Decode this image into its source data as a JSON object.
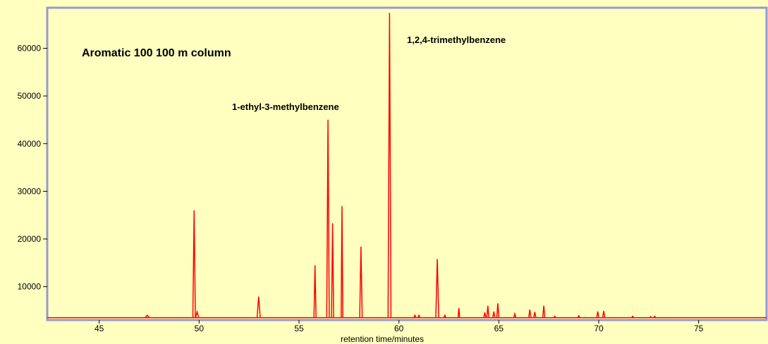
{
  "chart_data": {
    "type": "line",
    "title": "Aromatic 100  100 m column",
    "xlabel": "retention time/minutes",
    "ylabel": "",
    "xlim": [
      42.4,
      78.4
    ],
    "ylim": [
      3000,
      68500
    ],
    "xticks": [
      45,
      50,
      55,
      60,
      65,
      70,
      75
    ],
    "yticks": [
      10000,
      20000,
      30000,
      40000,
      50000,
      60000
    ],
    "grid": false,
    "baseline": 3500,
    "colors": {
      "background": "#ffffc0",
      "frame": "#9999cc",
      "trace": "#ff0000"
    },
    "annotations": [
      {
        "text": "1-ethyl-3-methylbenzene",
        "x": 56.4,
        "y": 45000
      },
      {
        "text": "1,2,4-trimethylbenzene",
        "x": 59.5,
        "y": 67500
      }
    ],
    "series": [
      {
        "peaks": [
          {
            "x": 47.4,
            "y": 4000,
            "w": 0.2
          },
          {
            "x": 49.75,
            "y": 26000,
            "w": 0.12
          },
          {
            "x": 49.9,
            "y": 4700,
            "w": 0.15
          },
          {
            "x": 52.98,
            "y": 7900,
            "w": 0.15
          },
          {
            "x": 55.8,
            "y": 14500,
            "w": 0.1
          },
          {
            "x": 56.45,
            "y": 45000,
            "w": 0.12
          },
          {
            "x": 56.68,
            "y": 23300,
            "w": 0.1
          },
          {
            "x": 57.15,
            "y": 26900,
            "w": 0.08
          },
          {
            "x": 58.1,
            "y": 18400,
            "w": 0.12
          },
          {
            "x": 59.53,
            "y": 67400,
            "w": 0.14
          },
          {
            "x": 60.8,
            "y": 4000,
            "w": 0.1
          },
          {
            "x": 61.0,
            "y": 4000,
            "w": 0.1
          },
          {
            "x": 61.92,
            "y": 15800,
            "w": 0.14
          },
          {
            "x": 62.3,
            "y": 4000,
            "w": 0.1
          },
          {
            "x": 63.0,
            "y": 5500,
            "w": 0.08
          },
          {
            "x": 64.3,
            "y": 4600,
            "w": 0.1
          },
          {
            "x": 64.45,
            "y": 6000,
            "w": 0.1
          },
          {
            "x": 64.75,
            "y": 4800,
            "w": 0.1
          },
          {
            "x": 64.95,
            "y": 6500,
            "w": 0.1
          },
          {
            "x": 65.8,
            "y": 4300,
            "w": 0.1
          },
          {
            "x": 66.55,
            "y": 5200,
            "w": 0.1
          },
          {
            "x": 66.8,
            "y": 4700,
            "w": 0.1
          },
          {
            "x": 67.25,
            "y": 6000,
            "w": 0.1
          },
          {
            "x": 67.8,
            "y": 3800,
            "w": 0.1
          },
          {
            "x": 69.0,
            "y": 3900,
            "w": 0.1
          },
          {
            "x": 69.95,
            "y": 4800,
            "w": 0.1
          },
          {
            "x": 70.25,
            "y": 4900,
            "w": 0.1
          },
          {
            "x": 71.7,
            "y": 3800,
            "w": 0.1
          },
          {
            "x": 72.6,
            "y": 3700,
            "w": 0.1
          },
          {
            "x": 72.8,
            "y": 3800,
            "w": 0.1
          }
        ]
      }
    ]
  }
}
